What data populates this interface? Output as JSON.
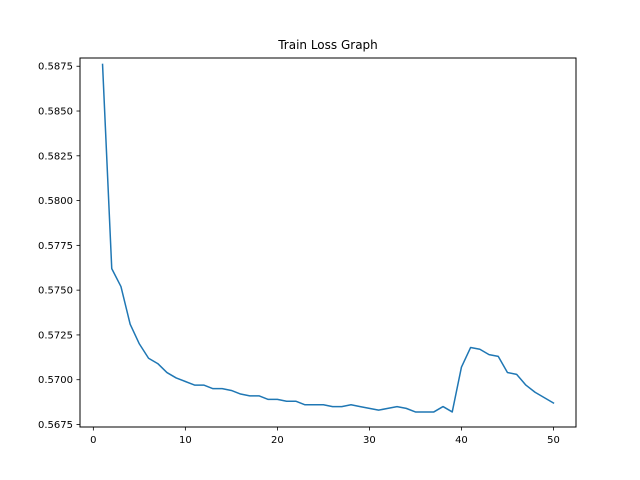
{
  "chart_data": {
    "type": "line",
    "title": "Train Loss Graph",
    "xlabel": "",
    "ylabel": "",
    "xlim": [
      -1.45,
      52.45
    ],
    "ylim": [
      0.56736,
      0.58796
    ],
    "xticks": [
      0,
      10,
      20,
      30,
      40,
      50
    ],
    "yticks": [
      0.5675,
      0.57,
      0.5725,
      0.575,
      0.5775,
      0.58,
      0.5825,
      0.585,
      0.5875
    ],
    "ytick_labels": [
      "0.5675",
      "0.5700",
      "0.5725",
      "0.5750",
      "0.5775",
      "0.5800",
      "0.5825",
      "0.5850",
      "0.5875"
    ],
    "grid": false,
    "series": [
      {
        "color": "#1f77b4",
        "x": [
          1,
          2,
          3,
          4,
          5,
          6,
          7,
          8,
          9,
          10,
          11,
          12,
          13,
          14,
          15,
          16,
          17,
          18,
          19,
          20,
          21,
          22,
          23,
          24,
          25,
          26,
          27,
          28,
          29,
          30,
          31,
          32,
          33,
          34,
          35,
          36,
          37,
          38,
          39,
          40,
          41,
          42,
          43,
          44,
          45,
          46,
          47,
          48,
          49,
          50
        ],
        "y": [
          0.5876,
          0.5762,
          0.5752,
          0.5731,
          0.572,
          0.5712,
          0.5709,
          0.5704,
          0.5701,
          0.5699,
          0.5697,
          0.5697,
          0.5695,
          0.5695,
          0.5694,
          0.5692,
          0.5691,
          0.5691,
          0.5689,
          0.5689,
          0.5688,
          0.5688,
          0.5686,
          0.5686,
          0.5686,
          0.5685,
          0.5685,
          0.5686,
          0.5685,
          0.5684,
          0.5683,
          0.5684,
          0.5685,
          0.5684,
          0.5682,
          0.5682,
          0.5682,
          0.5685,
          0.5682,
          0.5707,
          0.5718,
          0.5717,
          0.5714,
          0.5713,
          0.5704,
          0.5703,
          0.5697,
          0.5693,
          0.569,
          0.5687
        ]
      }
    ]
  }
}
